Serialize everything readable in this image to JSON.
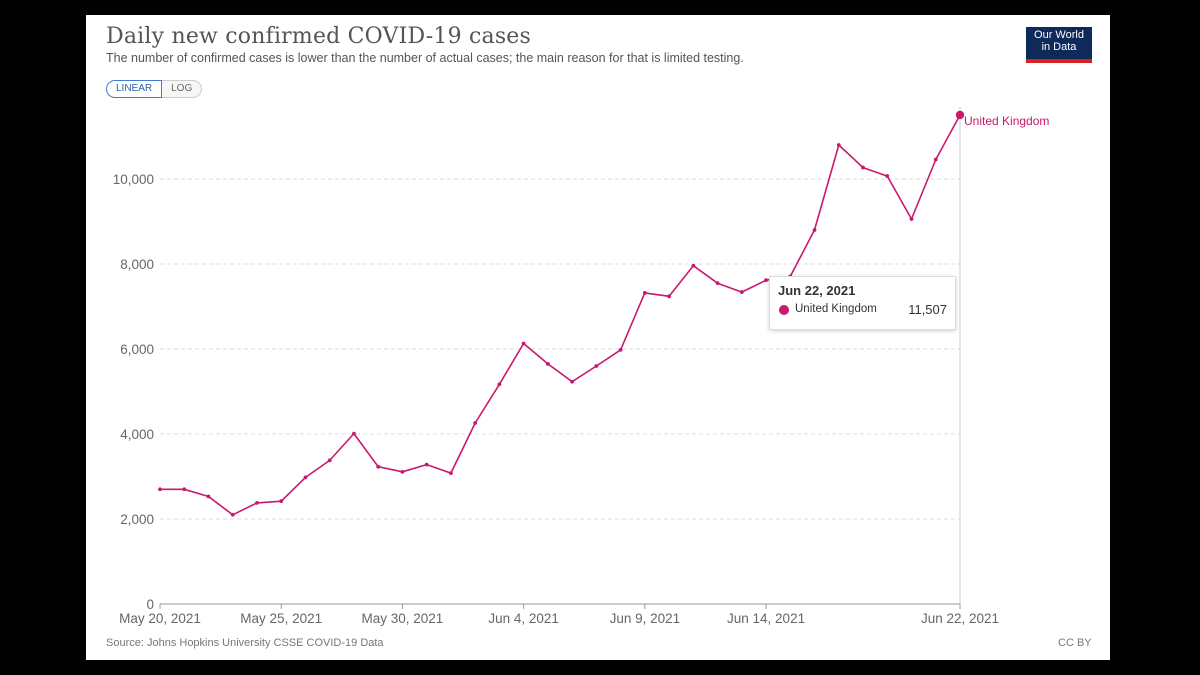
{
  "header": {
    "title": "Daily new confirmed COVID-19 cases",
    "subtitle": "The number of confirmed cases is lower than the number of actual cases; the main reason for that is limited testing."
  },
  "scale_toggle": {
    "linear_label": "LINEAR",
    "log_label": "LOG",
    "selected": "LINEAR"
  },
  "logo": {
    "line1": "Our World",
    "line2": "in Data"
  },
  "footer": {
    "source": "Source: Johns Hopkins University CSSE COVID-19 Data",
    "license": "CC BY"
  },
  "tooltip": {
    "date": "Jun 22, 2021",
    "series": "United Kingdom",
    "value": "11,507"
  },
  "colors": {
    "series": "#c8196e",
    "grid": "#dddddd",
    "axis_text": "#666666"
  },
  "chart_data": {
    "type": "line",
    "title": "Daily new confirmed COVID-19 cases",
    "xlabel": "",
    "ylabel": "",
    "ylim": [
      0,
      11507
    ],
    "yticks": [
      0,
      2000,
      4000,
      6000,
      8000,
      10000
    ],
    "ytick_labels": [
      "0",
      "2,000",
      "4,000",
      "6,000",
      "8,000",
      "10,000"
    ],
    "xticks": [
      {
        "day": 0,
        "label": "May 20, 2021"
      },
      {
        "day": 5,
        "label": "May 25, 2021"
      },
      {
        "day": 10,
        "label": "May 30, 2021"
      },
      {
        "day": 15,
        "label": "Jun 4, 2021"
      },
      {
        "day": 20,
        "label": "Jun 9, 2021"
      },
      {
        "day": 25,
        "label": "Jun 14, 2021"
      },
      {
        "day": 33,
        "label": "Jun 22, 2021"
      }
    ],
    "series": [
      {
        "name": "United Kingdom",
        "start_date": "2021-05-20",
        "values": [
          2700,
          2700,
          2530,
          2100,
          2380,
          2420,
          2980,
          3380,
          4010,
          3230,
          3110,
          3280,
          3080,
          4260,
          5170,
          6130,
          5650,
          5230,
          5600,
          5980,
          7320,
          7240,
          7960,
          7550,
          7340,
          7620,
          7710,
          8800,
          10800,
          10270,
          10070,
          9060,
          10460,
          11507
        ]
      }
    ]
  }
}
